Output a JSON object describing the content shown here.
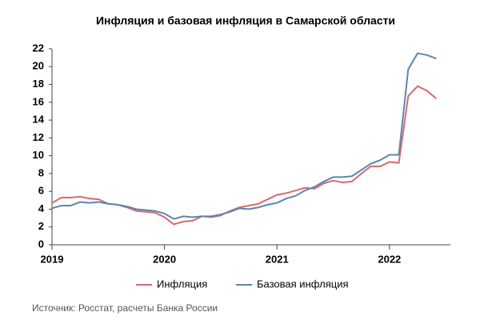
{
  "chart_data": {
    "type": "line",
    "title": "Инфляция и базовая инфляция в Самарской области",
    "source": "Источник: Росстат, расчеты Банка России",
    "x": [
      0,
      1,
      2,
      3,
      4,
      5,
      6,
      7,
      8,
      9,
      10,
      11,
      12,
      13,
      14,
      15,
      16,
      17,
      18,
      19,
      20,
      21,
      22,
      23,
      24,
      25,
      26,
      27,
      28,
      29,
      30,
      31,
      32,
      33,
      34,
      35,
      36,
      37,
      38,
      39,
      40,
      41
    ],
    "xlim": [
      0,
      42.5
    ],
    "xticks": [
      {
        "value": 0,
        "label": "2019"
      },
      {
        "value": 12,
        "label": "2020"
      },
      {
        "value": 24,
        "label": "2021"
      },
      {
        "value": 36,
        "label": "2022"
      }
    ],
    "ylim": [
      0,
      22
    ],
    "yticks": [
      0,
      2,
      4,
      6,
      8,
      10,
      12,
      14,
      16,
      18,
      20,
      22
    ],
    "legend": "bottom",
    "series": [
      {
        "name": "Инфляция",
        "color": "#d9686d",
        "values": [
          4.7,
          5.3,
          5.3,
          5.4,
          5.2,
          5.1,
          4.6,
          4.5,
          4.2,
          3.8,
          3.7,
          3.6,
          3.1,
          2.3,
          2.6,
          2.7,
          3.2,
          3.1,
          3.3,
          3.8,
          4.2,
          4.4,
          4.6,
          5.1,
          5.6,
          5.8,
          6.1,
          6.4,
          6.3,
          6.9,
          7.2,
          7.0,
          7.1,
          8.0,
          8.8,
          8.8,
          9.3,
          9.2,
          16.7,
          17.8,
          17.3,
          16.4
        ]
      },
      {
        "name": "Базовая инфляция",
        "color": "#5b86ad",
        "values": [
          4.1,
          4.4,
          4.4,
          4.8,
          4.7,
          4.8,
          4.6,
          4.5,
          4.3,
          4.0,
          3.9,
          3.8,
          3.5,
          2.9,
          3.2,
          3.1,
          3.2,
          3.2,
          3.4,
          3.7,
          4.1,
          4.0,
          4.2,
          4.5,
          4.7,
          5.2,
          5.5,
          6.1,
          6.5,
          7.1,
          7.6,
          7.6,
          7.7,
          8.4,
          9.1,
          9.5,
          10.1,
          10.1,
          19.7,
          21.5,
          21.3,
          20.9
        ]
      }
    ]
  }
}
